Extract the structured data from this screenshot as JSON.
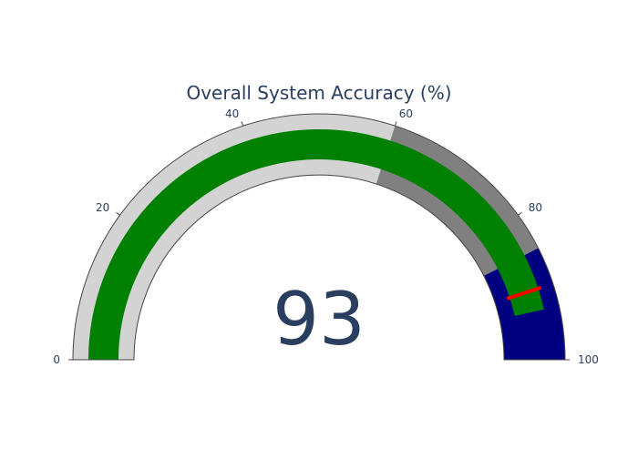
{
  "chart_data": {
    "type": "gauge",
    "title": "Overall System Accuracy (%)",
    "value": 93,
    "value_text": "93",
    "range": [
      0,
      100
    ],
    "ticks": [
      {
        "value": 0,
        "label": "0"
      },
      {
        "value": 20,
        "label": "20"
      },
      {
        "value": 40,
        "label": "40"
      },
      {
        "value": 60,
        "label": "60"
      },
      {
        "value": 80,
        "label": "80"
      },
      {
        "value": 100,
        "label": "100"
      }
    ],
    "steps": [
      {
        "name": "step-low",
        "range": [
          0,
          60
        ],
        "color": "#d3d3d3"
      },
      {
        "name": "step-mid",
        "range": [
          60,
          85
        ],
        "color": "#808080"
      },
      {
        "name": "step-high",
        "range": [
          85,
          100
        ],
        "color": "#000080"
      }
    ],
    "bar": {
      "color": "#008000"
    },
    "threshold": {
      "value": 90,
      "color": "#ff0000"
    },
    "colors": {
      "title": "#2a3f5f",
      "tick_text": "#2a3f5f",
      "value_text": "#2a3f5f",
      "border": "#444444"
    }
  }
}
